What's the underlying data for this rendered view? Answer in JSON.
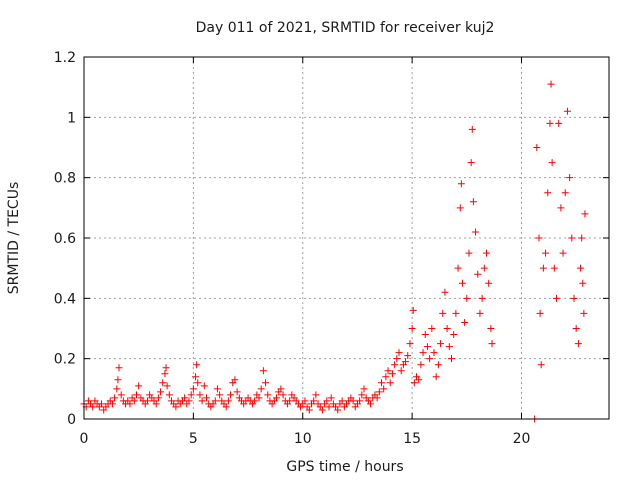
{
  "chart_data": {
    "type": "scatter",
    "title": "Day 011 of 2021, SRMTID for receiver kuj2",
    "xlabel": "GPS time / hours",
    "ylabel": "SRMTID / TECUs",
    "xlim": [
      0,
      24
    ],
    "ylim": [
      0,
      1.2
    ],
    "xticks": [
      0,
      5,
      10,
      15,
      20
    ],
    "xtick_labels": [
      "0",
      "5",
      "10",
      "15",
      "20"
    ],
    "yticks": [
      0,
      0.2,
      0.4,
      0.6,
      0.8,
      1.0,
      1.2
    ],
    "ytick_labels": [
      "0",
      "0.2",
      "0.4",
      "0.6",
      "0.8",
      "1",
      "1.2"
    ],
    "grid": true,
    "marker": "+",
    "series": [
      {
        "name": "SRMTID",
        "color": "#ff0000",
        "points": [
          [
            0.0,
            0.05
          ],
          [
            0.1,
            0.04
          ],
          [
            0.2,
            0.06
          ],
          [
            0.3,
            0.05
          ],
          [
            0.4,
            0.04
          ],
          [
            0.5,
            0.06
          ],
          [
            0.6,
            0.05
          ],
          [
            0.7,
            0.04
          ],
          [
            0.8,
            0.05
          ],
          [
            0.9,
            0.03
          ],
          [
            1.0,
            0.04
          ],
          [
            1.1,
            0.05
          ],
          [
            1.2,
            0.06
          ],
          [
            1.3,
            0.05
          ],
          [
            1.4,
            0.07
          ],
          [
            1.5,
            0.1
          ],
          [
            1.55,
            0.13
          ],
          [
            1.6,
            0.17
          ],
          [
            1.7,
            0.08
          ],
          [
            1.8,
            0.06
          ],
          [
            1.9,
            0.05
          ],
          [
            2.0,
            0.06
          ],
          [
            2.1,
            0.05
          ],
          [
            2.2,
            0.07
          ],
          [
            2.3,
            0.06
          ],
          [
            2.4,
            0.08
          ],
          [
            2.5,
            0.11
          ],
          [
            2.6,
            0.07
          ],
          [
            2.7,
            0.06
          ],
          [
            2.8,
            0.05
          ],
          [
            2.9,
            0.06
          ],
          [
            3.0,
            0.08
          ],
          [
            3.1,
            0.07
          ],
          [
            3.2,
            0.06
          ],
          [
            3.3,
            0.05
          ],
          [
            3.4,
            0.07
          ],
          [
            3.5,
            0.09
          ],
          [
            3.6,
            0.12
          ],
          [
            3.7,
            0.15
          ],
          [
            3.75,
            0.17
          ],
          [
            3.8,
            0.11
          ],
          [
            3.9,
            0.08
          ],
          [
            4.0,
            0.06
          ],
          [
            4.1,
            0.05
          ],
          [
            4.2,
            0.04
          ],
          [
            4.3,
            0.06
          ],
          [
            4.4,
            0.05
          ],
          [
            4.5,
            0.06
          ],
          [
            4.6,
            0.07
          ],
          [
            4.7,
            0.05
          ],
          [
            4.8,
            0.06
          ],
          [
            4.9,
            0.08
          ],
          [
            5.0,
            0.1
          ],
          [
            5.1,
            0.14
          ],
          [
            5.15,
            0.18
          ],
          [
            5.2,
            0.12
          ],
          [
            5.3,
            0.08
          ],
          [
            5.4,
            0.06
          ],
          [
            5.5,
            0.11
          ],
          [
            5.6,
            0.07
          ],
          [
            5.7,
            0.05
          ],
          [
            5.8,
            0.04
          ],
          [
            5.9,
            0.05
          ],
          [
            6.0,
            0.06
          ],
          [
            6.1,
            0.1
          ],
          [
            6.2,
            0.08
          ],
          [
            6.3,
            0.06
          ],
          [
            6.4,
            0.05
          ],
          [
            6.5,
            0.04
          ],
          [
            6.6,
            0.06
          ],
          [
            6.7,
            0.08
          ],
          [
            6.8,
            0.12
          ],
          [
            6.9,
            0.13
          ],
          [
            7.0,
            0.09
          ],
          [
            7.1,
            0.07
          ],
          [
            7.2,
            0.06
          ],
          [
            7.3,
            0.05
          ],
          [
            7.4,
            0.06
          ],
          [
            7.5,
            0.07
          ],
          [
            7.6,
            0.06
          ],
          [
            7.7,
            0.05
          ],
          [
            7.8,
            0.06
          ],
          [
            7.9,
            0.08
          ],
          [
            8.0,
            0.07
          ],
          [
            8.1,
            0.1
          ],
          [
            8.2,
            0.16
          ],
          [
            8.3,
            0.12
          ],
          [
            8.4,
            0.08
          ],
          [
            8.5,
            0.06
          ],
          [
            8.6,
            0.05
          ],
          [
            8.7,
            0.06
          ],
          [
            8.8,
            0.07
          ],
          [
            8.9,
            0.09
          ],
          [
            9.0,
            0.1
          ],
          [
            9.1,
            0.08
          ],
          [
            9.2,
            0.06
          ],
          [
            9.3,
            0.05
          ],
          [
            9.4,
            0.06
          ],
          [
            9.5,
            0.08
          ],
          [
            9.6,
            0.07
          ],
          [
            9.7,
            0.06
          ],
          [
            9.8,
            0.05
          ],
          [
            9.9,
            0.04
          ],
          [
            10.0,
            0.05
          ],
          [
            10.1,
            0.06
          ],
          [
            10.2,
            0.04
          ],
          [
            10.3,
            0.03
          ],
          [
            10.4,
            0.05
          ],
          [
            10.5,
            0.06
          ],
          [
            10.6,
            0.08
          ],
          [
            10.7,
            0.05
          ],
          [
            10.8,
            0.04
          ],
          [
            10.9,
            0.03
          ],
          [
            11.0,
            0.05
          ],
          [
            11.1,
            0.06
          ],
          [
            11.2,
            0.04
          ],
          [
            11.3,
            0.07
          ],
          [
            11.4,
            0.05
          ],
          [
            11.5,
            0.04
          ],
          [
            11.6,
            0.03
          ],
          [
            11.7,
            0.05
          ],
          [
            11.8,
            0.06
          ],
          [
            11.9,
            0.04
          ],
          [
            12.0,
            0.05
          ],
          [
            12.1,
            0.06
          ],
          [
            12.2,
            0.07
          ],
          [
            12.3,
            0.06
          ],
          [
            12.4,
            0.04
          ],
          [
            12.5,
            0.05
          ],
          [
            12.6,
            0.06
          ],
          [
            12.7,
            0.08
          ],
          [
            12.8,
            0.1
          ],
          [
            12.9,
            0.07
          ],
          [
            13.0,
            0.06
          ],
          [
            13.1,
            0.05
          ],
          [
            13.2,
            0.07
          ],
          [
            13.3,
            0.08
          ],
          [
            13.4,
            0.07
          ],
          [
            13.5,
            0.09
          ],
          [
            13.6,
            0.12
          ],
          [
            13.7,
            0.1
          ],
          [
            13.8,
            0.14
          ],
          [
            13.9,
            0.16
          ],
          [
            14.0,
            0.12
          ],
          [
            14.1,
            0.15
          ],
          [
            14.2,
            0.18
          ],
          [
            14.3,
            0.2
          ],
          [
            14.4,
            0.22
          ],
          [
            14.5,
            0.16
          ],
          [
            14.6,
            0.18
          ],
          [
            14.7,
            0.19
          ],
          [
            14.8,
            0.21
          ],
          [
            14.9,
            0.25
          ],
          [
            15.0,
            0.3
          ],
          [
            15.05,
            0.36
          ],
          [
            15.1,
            0.12
          ],
          [
            15.2,
            0.14
          ],
          [
            15.3,
            0.13
          ],
          [
            15.4,
            0.18
          ],
          [
            15.5,
            0.22
          ],
          [
            15.6,
            0.28
          ],
          [
            15.7,
            0.24
          ],
          [
            15.8,
            0.2
          ],
          [
            15.9,
            0.3
          ],
          [
            16.0,
            0.22
          ],
          [
            16.1,
            0.14
          ],
          [
            16.2,
            0.18
          ],
          [
            16.3,
            0.25
          ],
          [
            16.4,
            0.35
          ],
          [
            16.5,
            0.42
          ],
          [
            16.6,
            0.3
          ],
          [
            16.7,
            0.24
          ],
          [
            16.8,
            0.2
          ],
          [
            16.9,
            0.28
          ],
          [
            17.0,
            0.35
          ],
          [
            17.1,
            0.5
          ],
          [
            17.2,
            0.7
          ],
          [
            17.25,
            0.78
          ],
          [
            17.3,
            0.45
          ],
          [
            17.4,
            0.32
          ],
          [
            17.5,
            0.4
          ],
          [
            17.6,
            0.55
          ],
          [
            17.7,
            0.85
          ],
          [
            17.75,
            0.96
          ],
          [
            17.8,
            0.72
          ],
          [
            17.9,
            0.62
          ],
          [
            18.0,
            0.48
          ],
          [
            18.1,
            0.35
          ],
          [
            18.2,
            0.4
          ],
          [
            18.3,
            0.5
          ],
          [
            18.4,
            0.55
          ],
          [
            18.5,
            0.45
          ],
          [
            18.6,
            0.3
          ],
          [
            18.65,
            0.25
          ],
          [
            20.6,
            0.0
          ],
          [
            20.7,
            0.9
          ],
          [
            20.8,
            0.6
          ],
          [
            20.85,
            0.35
          ],
          [
            20.9,
            0.18
          ],
          [
            21.0,
            0.5
          ],
          [
            21.1,
            0.55
          ],
          [
            21.2,
            0.75
          ],
          [
            21.3,
            0.98
          ],
          [
            21.35,
            1.11
          ],
          [
            21.4,
            0.85
          ],
          [
            21.5,
            0.5
          ],
          [
            21.6,
            0.4
          ],
          [
            21.7,
            0.98
          ],
          [
            21.8,
            0.7
          ],
          [
            21.9,
            0.55
          ],
          [
            22.0,
            0.75
          ],
          [
            22.1,
            1.02
          ],
          [
            22.2,
            0.8
          ],
          [
            22.3,
            0.6
          ],
          [
            22.4,
            0.4
          ],
          [
            22.5,
            0.3
          ],
          [
            22.6,
            0.25
          ],
          [
            22.7,
            0.5
          ],
          [
            22.75,
            0.6
          ],
          [
            22.8,
            0.45
          ],
          [
            22.85,
            0.35
          ],
          [
            22.9,
            0.68
          ]
        ]
      }
    ]
  }
}
